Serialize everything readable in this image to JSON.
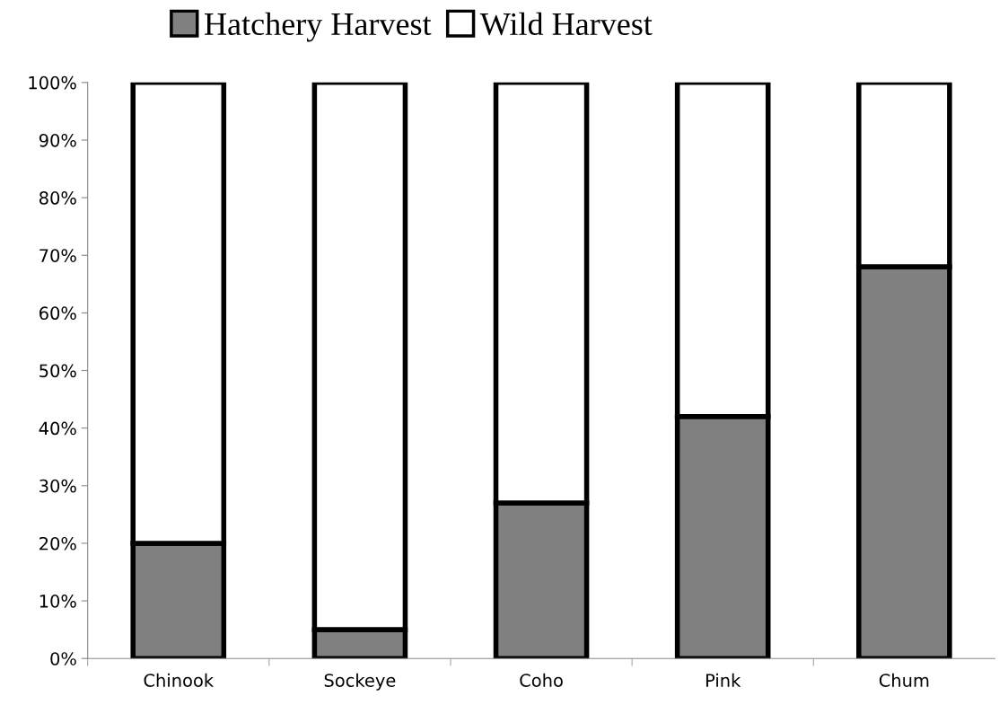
{
  "chart_data": {
    "type": "bar",
    "stacked": true,
    "categories": [
      "Chinook",
      "Sockeye",
      "Coho",
      "Pink",
      "Chum"
    ],
    "series": [
      {
        "name": "Hatchery Harvest",
        "color": "#808080",
        "values": [
          20,
          5,
          27,
          42,
          68
        ]
      },
      {
        "name": "Wild Harvest",
        "color": "#ffffff",
        "values": [
          80,
          95,
          73,
          58,
          32
        ]
      }
    ],
    "ylim": [
      0,
      100
    ],
    "yticks": [
      {
        "value": 0,
        "label": "0%"
      },
      {
        "value": 10,
        "label": "10%"
      },
      {
        "value": 20,
        "label": "20%"
      },
      {
        "value": 30,
        "label": "30%"
      },
      {
        "value": 40,
        "label": "40%"
      },
      {
        "value": 50,
        "label": "50%"
      },
      {
        "value": 60,
        "label": "60%"
      },
      {
        "value": 70,
        "label": "70%"
      },
      {
        "value": 80,
        "label": "80%"
      },
      {
        "value": 90,
        "label": "90%"
      },
      {
        "value": 100,
        "label": "100%"
      }
    ],
    "grid": false,
    "legend": "top left"
  }
}
